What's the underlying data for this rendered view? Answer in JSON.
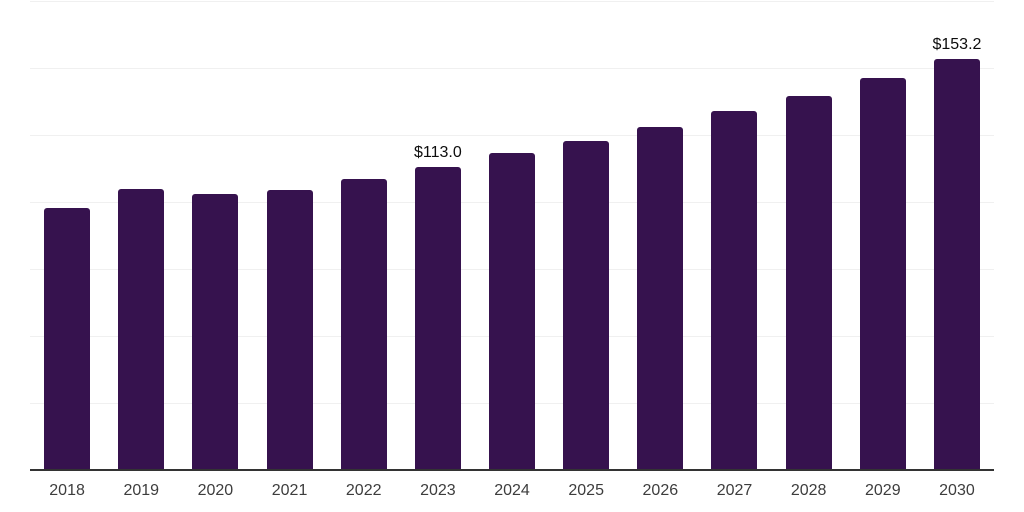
{
  "chart_data": {
    "type": "bar",
    "categories": [
      "2018",
      "2019",
      "2020",
      "2021",
      "2022",
      "2023",
      "2024",
      "2025",
      "2026",
      "2027",
      "2028",
      "2029",
      "2030"
    ],
    "values": [
      97.9,
      104.8,
      103.0,
      104.6,
      108.4,
      113.0,
      118.2,
      122.7,
      128.1,
      134.0,
      139.7,
      146.1,
      153.2
    ],
    "annotations": [
      {
        "category_index": 5,
        "text": "$113.0"
      },
      {
        "category_index": 12,
        "text": "$153.2"
      }
    ],
    "title": "",
    "xlabel": "",
    "ylabel": "",
    "ylim": [
      0,
      175
    ],
    "gridline_interval": 25,
    "grid": true,
    "legend": false,
    "y_tick_labels_visible": false,
    "colors": {
      "bar": "#36124e",
      "gridline": "#f0f0f0",
      "axis_line": "#333333",
      "tick_label": "#3d3d3d",
      "value_label": "#0d0d0d",
      "background": "#ffffff"
    }
  }
}
